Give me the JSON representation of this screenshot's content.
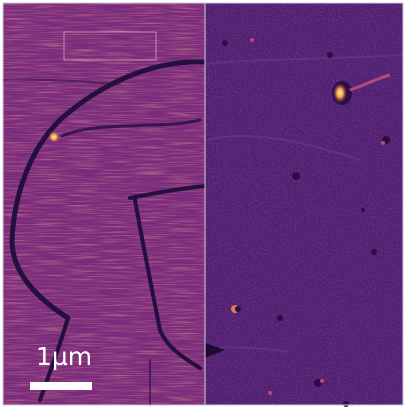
{
  "figure": {
    "scale_label": "1µm",
    "colormap": [
      "#2a0f45",
      "#4e1b68",
      "#6a2578",
      "#8c3284",
      "#b24a7d",
      "#e07a55",
      "#f6c64a",
      "#fff3a0"
    ]
  }
}
